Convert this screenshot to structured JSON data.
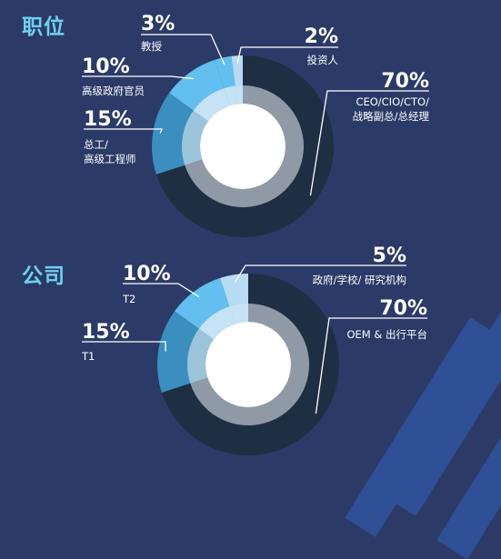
{
  "colors": {
    "background": "#2b3a66",
    "title": "#6fd0f0",
    "dark_slice": "#1e2f44",
    "mid_blue": "#3a8fbf",
    "light_blue": "#62bff0",
    "pale_blue": "#b7dbf3",
    "inner_ring": "#8f9aa6",
    "center": "#ffffff"
  },
  "chart_data": [
    {
      "type": "pie",
      "title": "职位",
      "slices": [
        {
          "label": "CEO/CIO/CTO/\n战略副总/总经理",
          "value": 70,
          "display": "70%"
        },
        {
          "label": "总工/\n高级工程师",
          "value": 15,
          "display": "15%"
        },
        {
          "label": "高级政府官员",
          "value": 10,
          "display": "10%"
        },
        {
          "label": "教授",
          "value": 3,
          "display": "3%"
        },
        {
          "label": "投资人",
          "value": 2,
          "display": "2%"
        }
      ]
    },
    {
      "type": "pie",
      "title": "公司",
      "slices": [
        {
          "label": "OEM & 出行平台",
          "value": 70,
          "display": "70%"
        },
        {
          "label": "T1",
          "value": 15,
          "display": "15%"
        },
        {
          "label": "T2",
          "value": 10,
          "display": "10%"
        },
        {
          "label": "政府/学校/ 研究机构",
          "value": 5,
          "display": "5%"
        }
      ]
    }
  ]
}
